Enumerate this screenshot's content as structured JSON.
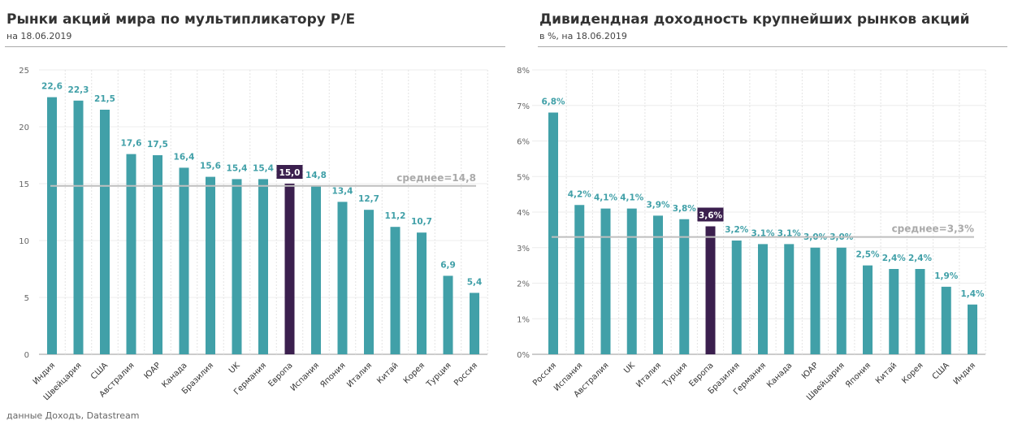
{
  "source": "данные Доходъ, Datastream",
  "chart_data": [
    {
      "type": "bar",
      "title": "Рынки акций мира по мультипликатору  P/E",
      "subtitle": "на 18.06.2019",
      "categories": [
        "Индия",
        "Швейцария",
        "США",
        "Австралия",
        "ЮАР",
        "Канада",
        "Бразилия",
        "UK",
        "Германия",
        "Европа",
        "Испания",
        "Япония",
        "Италия",
        "Китай",
        "Корея",
        "Турция",
        "Россия"
      ],
      "values": [
        22.6,
        22.3,
        21.5,
        17.6,
        17.5,
        16.4,
        15.6,
        15.4,
        15.4,
        15.0,
        14.8,
        13.4,
        12.7,
        11.2,
        10.7,
        6.9,
        5.4
      ],
      "data_labels": [
        "22,6",
        "22,3",
        "21,5",
        "17,6",
        "17,5",
        "16,4",
        "15,6",
        "15,4",
        "15,4",
        "15,0",
        "14,8",
        "13,4",
        "12,7",
        "11,2",
        "10,7",
        "6,9",
        "5,4"
      ],
      "highlight": "Европа",
      "ylim": [
        0,
        25
      ],
      "yticks": [
        0,
        5,
        10,
        15,
        20,
        25
      ],
      "ytick_labels": [
        "0",
        "5",
        "10",
        "15",
        "20",
        "25"
      ],
      "average": 14.8,
      "average_label": "среднее=14,8",
      "grid": true,
      "colors": {
        "bar": "#41a0a8",
        "highlight": "#3b1f4e",
        "label": "#41a0a8",
        "average": "#bfbfbf"
      }
    },
    {
      "type": "bar",
      "title": "Дивидендная доходность крупнейших рынков акций",
      "subtitle": "в %, на 18.06.2019",
      "categories": [
        "Россия",
        "Испания",
        "Австралия",
        "UK",
        "Италия",
        "Турция",
        "Европа",
        "Бразилия",
        "Германия",
        "Канада",
        "ЮАР",
        "Швейцария",
        "Япония",
        "Китай",
        "Корея",
        "США",
        "Индия"
      ],
      "values": [
        6.8,
        4.2,
        4.1,
        4.1,
        3.9,
        3.8,
        3.6,
        3.2,
        3.1,
        3.1,
        3.0,
        3.0,
        2.5,
        2.4,
        2.4,
        1.9,
        1.4
      ],
      "data_labels": [
        "6,8%",
        "4,2%",
        "4,1%",
        "4,1%",
        "3,9%",
        "3,8%",
        "3,6%",
        "3,2%",
        "3,1%",
        "3,1%",
        "3,0%",
        "3,0%",
        "2,5%",
        "2,4%",
        "2,4%",
        "1,9%",
        "1,4%"
      ],
      "highlight": "Европа",
      "ylim": [
        0,
        8
      ],
      "yticks": [
        0,
        1,
        2,
        3,
        4,
        5,
        6,
        7,
        8
      ],
      "ytick_labels": [
        "0%",
        "1%",
        "2%",
        "3%",
        "4%",
        "5%",
        "6%",
        "7%",
        "8%"
      ],
      "average": 3.3,
      "average_label": "среднее=3,3%",
      "grid": true,
      "colors": {
        "bar": "#41a0a8",
        "highlight": "#3b1f4e",
        "label": "#41a0a8",
        "average": "#bfbfbf"
      }
    }
  ]
}
